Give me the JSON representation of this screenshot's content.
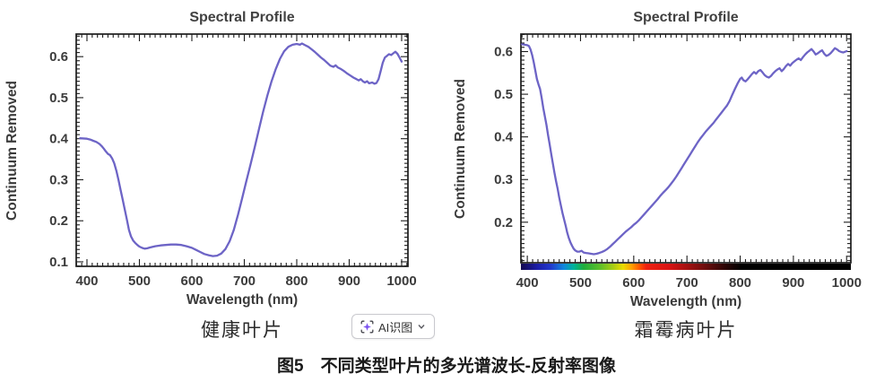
{
  "page": {
    "figure_caption": "图5　不同类型叶片的多光谱波长-反射率图像"
  },
  "ai_button": {
    "label": "AI识图",
    "icon": "ai-scan-sparkle-icon",
    "icon_color": "#7b52f0"
  },
  "chart_data": [
    {
      "type": "line",
      "title": "Spectral Profile",
      "xlabel": "Wavelength (nm)",
      "ylabel": "Continuum Removed",
      "caption": "健康叶片",
      "legend": "none",
      "grid": false,
      "x_ticks": [
        400,
        500,
        600,
        700,
        800,
        900,
        1000
      ],
      "y_ticks": [
        0.1,
        0.2,
        0.3,
        0.4,
        0.5,
        0.6
      ],
      "xlim": [
        379.5,
        1012
      ],
      "ylim": [
        0.089,
        0.655
      ],
      "line_color": "#6d64c6",
      "axis_color": "#1c1c1c",
      "series": [
        {
          "name": "healthy-leaf-spectrum",
          "points": [
            [
              387,
              0.401
            ],
            [
              400,
              0.4
            ],
            [
              406,
              0.398
            ],
            [
              412,
              0.395
            ],
            [
              418,
              0.392
            ],
            [
              424,
              0.387
            ],
            [
              428,
              0.382
            ],
            [
              432,
              0.376
            ],
            [
              436,
              0.369
            ],
            [
              440,
              0.363
            ],
            [
              444,
              0.36
            ],
            [
              448,
              0.352
            ],
            [
              452,
              0.34
            ],
            [
              456,
              0.322
            ],
            [
              460,
              0.3
            ],
            [
              464,
              0.276
            ],
            [
              468,
              0.252
            ],
            [
              472,
              0.228
            ],
            [
              476,
              0.203
            ],
            [
              480,
              0.178
            ],
            [
              484,
              0.162
            ],
            [
              488,
              0.152
            ],
            [
              492,
              0.146
            ],
            [
              496,
              0.141
            ],
            [
              500,
              0.137
            ],
            [
              505,
              0.134
            ],
            [
              510,
              0.132
            ],
            [
              515,
              0.133
            ],
            [
              520,
              0.135
            ],
            [
              530,
              0.138
            ],
            [
              540,
              0.14
            ],
            [
              550,
              0.141
            ],
            [
              560,
              0.142
            ],
            [
              570,
              0.142
            ],
            [
              580,
              0.141
            ],
            [
              590,
              0.138
            ],
            [
              600,
              0.134
            ],
            [
              608,
              0.129
            ],
            [
              616,
              0.124
            ],
            [
              624,
              0.119
            ],
            [
              632,
              0.116
            ],
            [
              640,
              0.114
            ],
            [
              648,
              0.115
            ],
            [
              656,
              0.12
            ],
            [
              664,
              0.131
            ],
            [
              672,
              0.15
            ],
            [
              680,
              0.178
            ],
            [
              688,
              0.215
            ],
            [
              696,
              0.255
            ],
            [
              704,
              0.297
            ],
            [
              712,
              0.338
            ],
            [
              720,
              0.38
            ],
            [
              728,
              0.424
            ],
            [
              736,
              0.466
            ],
            [
              744,
              0.505
            ],
            [
              752,
              0.54
            ],
            [
              760,
              0.57
            ],
            [
              768,
              0.595
            ],
            [
              776,
              0.613
            ],
            [
              784,
              0.624
            ],
            [
              792,
              0.629
            ],
            [
              800,
              0.631
            ],
            [
              806,
              0.629
            ],
            [
              810,
              0.632
            ],
            [
              816,
              0.628
            ],
            [
              822,
              0.624
            ],
            [
              828,
              0.618
            ],
            [
              834,
              0.612
            ],
            [
              840,
              0.605
            ],
            [
              846,
              0.598
            ],
            [
              852,
              0.592
            ],
            [
              858,
              0.585
            ],
            [
              864,
              0.578
            ],
            [
              870,
              0.575
            ],
            [
              874,
              0.579
            ],
            [
              878,
              0.574
            ],
            [
              884,
              0.57
            ],
            [
              890,
              0.565
            ],
            [
              896,
              0.559
            ],
            [
              902,
              0.554
            ],
            [
              908,
              0.549
            ],
            [
              914,
              0.545
            ],
            [
              918,
              0.542
            ],
            [
              922,
              0.545
            ],
            [
              926,
              0.54
            ],
            [
              930,
              0.537
            ],
            [
              934,
              0.54
            ],
            [
              938,
              0.535
            ],
            [
              944,
              0.537
            ],
            [
              948,
              0.534
            ],
            [
              952,
              0.536
            ],
            [
              956,
              0.545
            ],
            [
              960,
              0.565
            ],
            [
              964,
              0.585
            ],
            [
              968,
              0.598
            ],
            [
              972,
              0.602
            ],
            [
              976,
              0.606
            ],
            [
              980,
              0.604
            ],
            [
              984,
              0.608
            ],
            [
              988,
              0.612
            ],
            [
              992,
              0.607
            ],
            [
              996,
              0.598
            ],
            [
              1000,
              0.588
            ]
          ]
        }
      ]
    },
    {
      "type": "line",
      "title": "Spectral Profile",
      "xlabel": "Wavelength (nm)",
      "ylabel": "Continuum Removed",
      "caption": "霜霉病叶片",
      "legend": "none",
      "grid": false,
      "x_ticks": [
        400,
        500,
        600,
        700,
        800,
        900,
        1000
      ],
      "y_ticks": [
        0.2,
        0.3,
        0.4,
        0.5,
        0.6
      ],
      "xlim": [
        388,
        1008
      ],
      "ylim": [
        0.105,
        0.641
      ],
      "line_color": "#6d64c6",
      "axis_color": "#1c1c1c",
      "colorbar": {
        "position": "below-x-axis",
        "stops": [
          [
            0,
            "#14094f"
          ],
          [
            5,
            "#1c1ea8"
          ],
          [
            9,
            "#2238cc"
          ],
          [
            13,
            "#1188dd"
          ],
          [
            16,
            "#00b49a"
          ],
          [
            19,
            "#1fae3c"
          ],
          [
            24,
            "#5fc02a"
          ],
          [
            28,
            "#aacd15"
          ],
          [
            31,
            "#ecdc00"
          ],
          [
            33.5,
            "#ffa200"
          ],
          [
            36,
            "#ff5500"
          ],
          [
            38,
            "#ee2211"
          ],
          [
            45,
            "#d81414"
          ],
          [
            50,
            "#a81111"
          ],
          [
            56,
            "#6b0d0d"
          ],
          [
            62,
            "#2a0505"
          ],
          [
            67,
            "#000000"
          ],
          [
            100,
            "#000000"
          ]
        ]
      },
      "series": [
        {
          "name": "downy-mildew-leaf-spectrum",
          "points": [
            [
              390,
              0.617
            ],
            [
              400,
              0.615
            ],
            [
              403,
              0.613
            ],
            [
              406,
              0.605
            ],
            [
              409,
              0.592
            ],
            [
              412,
              0.576
            ],
            [
              415,
              0.556
            ],
            [
              418,
              0.536
            ],
            [
              421,
              0.523
            ],
            [
              424,
              0.512
            ],
            [
              427,
              0.492
            ],
            [
              430,
              0.468
            ],
            [
              433,
              0.448
            ],
            [
              436,
              0.428
            ],
            [
              439,
              0.404
            ],
            [
              442,
              0.382
            ],
            [
              445,
              0.36
            ],
            [
              448,
              0.338
            ],
            [
              451,
              0.316
            ],
            [
              454,
              0.296
            ],
            [
              457,
              0.278
            ],
            [
              460,
              0.258
            ],
            [
              463,
              0.24
            ],
            [
              466,
              0.222
            ],
            [
              469,
              0.207
            ],
            [
              472,
              0.192
            ],
            [
              475,
              0.176
            ],
            [
              478,
              0.163
            ],
            [
              481,
              0.153
            ],
            [
              484,
              0.145
            ],
            [
              487,
              0.138
            ],
            [
              490,
              0.134
            ],
            [
              494,
              0.131
            ],
            [
              498,
              0.131
            ],
            [
              502,
              0.133
            ],
            [
              506,
              0.129
            ],
            [
              510,
              0.128
            ],
            [
              515,
              0.127
            ],
            [
              520,
              0.126
            ],
            [
              525,
              0.125
            ],
            [
              530,
              0.126
            ],
            [
              535,
              0.128
            ],
            [
              540,
              0.13
            ],
            [
              545,
              0.133
            ],
            [
              550,
              0.137
            ],
            [
              555,
              0.142
            ],
            [
              560,
              0.148
            ],
            [
              565,
              0.154
            ],
            [
              570,
              0.16
            ],
            [
              575,
              0.166
            ],
            [
              580,
              0.172
            ],
            [
              585,
              0.178
            ],
            [
              590,
              0.183
            ],
            [
              595,
              0.188
            ],
            [
              600,
              0.194
            ],
            [
              605,
              0.199
            ],
            [
              610,
              0.205
            ],
            [
              615,
              0.212
            ],
            [
              620,
              0.219
            ],
            [
              625,
              0.226
            ],
            [
              630,
              0.233
            ],
            [
              635,
              0.24
            ],
            [
              640,
              0.247
            ],
            [
              645,
              0.254
            ],
            [
              650,
              0.262
            ],
            [
              655,
              0.269
            ],
            [
              660,
              0.275
            ],
            [
              665,
              0.282
            ],
            [
              670,
              0.29
            ],
            [
              675,
              0.298
            ],
            [
              680,
              0.307
            ],
            [
              685,
              0.317
            ],
            [
              690,
              0.327
            ],
            [
              695,
              0.337
            ],
            [
              700,
              0.347
            ],
            [
              705,
              0.357
            ],
            [
              710,
              0.367
            ],
            [
              715,
              0.377
            ],
            [
              720,
              0.387
            ],
            [
              725,
              0.396
            ],
            [
              730,
              0.404
            ],
            [
              735,
              0.412
            ],
            [
              740,
              0.419
            ],
            [
              745,
              0.426
            ],
            [
              750,
              0.433
            ],
            [
              755,
              0.441
            ],
            [
              760,
              0.449
            ],
            [
              765,
              0.457
            ],
            [
              770,
              0.465
            ],
            [
              775,
              0.473
            ],
            [
              780,
              0.484
            ],
            [
              785,
              0.498
            ],
            [
              790,
              0.512
            ],
            [
              795,
              0.525
            ],
            [
              800,
              0.536
            ],
            [
              803,
              0.539
            ],
            [
              806,
              0.533
            ],
            [
              810,
              0.53
            ],
            [
              814,
              0.535
            ],
            [
              818,
              0.541
            ],
            [
              822,
              0.547
            ],
            [
              826,
              0.552
            ],
            [
              830,
              0.548
            ],
            [
              834,
              0.554
            ],
            [
              838,
              0.557
            ],
            [
              842,
              0.551
            ],
            [
              846,
              0.545
            ],
            [
              850,
              0.541
            ],
            [
              854,
              0.539
            ],
            [
              858,
              0.543
            ],
            [
              862,
              0.549
            ],
            [
              866,
              0.554
            ],
            [
              870,
              0.558
            ],
            [
              874,
              0.561
            ],
            [
              878,
              0.554
            ],
            [
              882,
              0.559
            ],
            [
              886,
              0.566
            ],
            [
              890,
              0.571
            ],
            [
              894,
              0.567
            ],
            [
              898,
              0.573
            ],
            [
              902,
              0.577
            ],
            [
              906,
              0.581
            ],
            [
              910,
              0.584
            ],
            [
              914,
              0.58
            ],
            [
              918,
              0.587
            ],
            [
              922,
              0.593
            ],
            [
              926,
              0.598
            ],
            [
              930,
              0.602
            ],
            [
              934,
              0.606
            ],
            [
              938,
              0.6
            ],
            [
              942,
              0.593
            ],
            [
              946,
              0.596
            ],
            [
              950,
              0.6
            ],
            [
              954,
              0.603
            ],
            [
              958,
              0.595
            ],
            [
              962,
              0.59
            ],
            [
              966,
              0.592
            ],
            [
              970,
              0.596
            ],
            [
              974,
              0.602
            ],
            [
              978,
              0.608
            ],
            [
              982,
              0.605
            ],
            [
              986,
              0.601
            ],
            [
              990,
              0.599
            ],
            [
              994,
              0.598
            ],
            [
              1000,
              0.601
            ]
          ]
        }
      ]
    }
  ]
}
